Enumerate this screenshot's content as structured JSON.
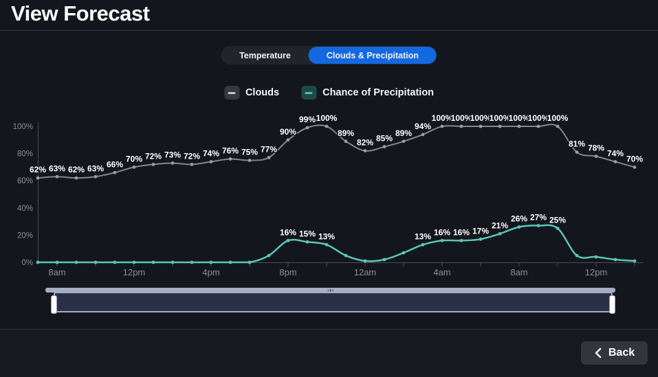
{
  "header": {
    "title": "View Forecast"
  },
  "tabs": {
    "active_color": "#1468e0",
    "items": [
      {
        "label": "Temperature",
        "active": false
      },
      {
        "label": "Clouds & Precipitation",
        "active": true
      }
    ]
  },
  "legend": [
    {
      "label": "Clouds",
      "swatch_bg": "#35383f",
      "swatch_dash": "#c4c5c9"
    },
    {
      "label": "Chance of Precipitation",
      "swatch_bg": "#1d4a47",
      "swatch_dash": "#52c0b2"
    }
  ],
  "chart_data": {
    "type": "line",
    "x": [
      "7am",
      "8am",
      "9am",
      "10am",
      "11am",
      "12pm",
      "1pm",
      "2pm",
      "3pm",
      "4pm",
      "5pm",
      "6pm",
      "7pm",
      "8pm",
      "9pm",
      "10pm",
      "11pm",
      "12am",
      "1am",
      "2am",
      "3am",
      "4am",
      "5am",
      "6am",
      "7am",
      "8am",
      "9am",
      "10am",
      "11am",
      "12pm",
      "1pm",
      "2pm"
    ],
    "x_axis_visible_labels": [
      "8am",
      "12pm",
      "4pm",
      "8pm",
      "12am",
      "4am",
      "8am",
      "12pm"
    ],
    "x_tick_every": 2,
    "x_label_every": 4,
    "x_label_start_index": 1,
    "y_ticks": [
      "0%",
      "20%",
      "40%",
      "60%",
      "80%",
      "100%"
    ],
    "ylim": [
      0,
      100
    ],
    "grid": false,
    "legend_position": "top-center",
    "series": [
      {
        "name": "Clouds",
        "color": "#85878d",
        "marker_color": "#9a9ca2",
        "label_threshold": 0,
        "values": [
          62,
          63,
          62,
          63,
          66,
          70,
          72,
          73,
          72,
          74,
          76,
          75,
          77,
          90,
          99,
          100,
          89,
          82,
          85,
          89,
          94,
          100,
          100,
          100,
          100,
          100,
          100,
          100,
          81,
          78,
          74,
          70
        ]
      },
      {
        "name": "Chance of Precipitation",
        "color": "#5cc6b8",
        "marker_color": "#5cc6b8",
        "label_threshold": 13,
        "values": [
          0,
          0,
          0,
          0,
          0,
          0,
          0,
          0,
          0,
          0,
          0,
          0,
          5,
          16,
          15,
          13,
          5,
          1,
          2,
          7,
          13,
          16,
          16,
          17,
          21,
          26,
          27,
          25,
          5,
          4,
          2,
          1
        ]
      }
    ],
    "data_label_suffix": "%"
  },
  "footer": {
    "back_label": "Back"
  }
}
